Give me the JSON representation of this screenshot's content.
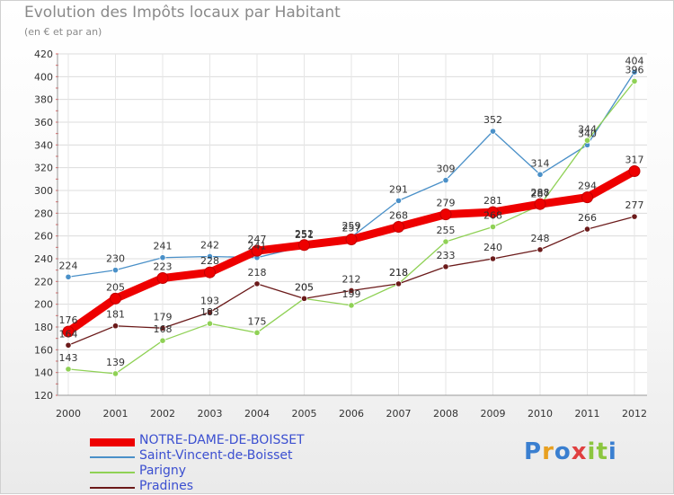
{
  "chart_data": {
    "type": "line",
    "title": "Evolution des Impôts locaux par Habitant",
    "subtitle": "(en € et par an)",
    "x": [
      "2000",
      "2001",
      "2002",
      "2003",
      "2004",
      "2005",
      "2006",
      "2007",
      "2008",
      "2009",
      "2010",
      "2011",
      "2012"
    ],
    "ylim": [
      120,
      420
    ],
    "yticks": [
      120,
      140,
      160,
      180,
      200,
      220,
      240,
      260,
      280,
      300,
      320,
      340,
      360,
      380,
      400,
      420
    ],
    "grid": true,
    "legend_position": "bottom-left",
    "series": [
      {
        "name": "NOTRE-DAME-DE-BOISSET",
        "color": "#ee0000",
        "values": [
          176,
          205,
          223,
          228,
          247,
          252,
          257,
          268,
          279,
          281,
          288,
          294,
          317
        ]
      },
      {
        "name": "Saint-Vincent-de-Boisset",
        "color": "#4a90c8",
        "values": [
          224,
          230,
          241,
          242,
          241,
          251,
          259,
          291,
          309,
          352,
          314,
          340,
          404
        ]
      },
      {
        "name": "Parigny",
        "color": "#8fd155",
        "values": [
          143,
          139,
          168,
          183,
          175,
          205,
          199,
          218,
          255,
          268,
          287,
          344,
          396
        ]
      },
      {
        "name": "Pradines",
        "color": "#6b1a1a",
        "values": [
          164,
          181,
          179,
          193,
          218,
          205,
          212,
          218,
          233,
          240,
          248,
          266,
          277
        ]
      }
    ]
  },
  "branding": {
    "text": "Proxiti",
    "colors": [
      "#3a7fd0",
      "#e8a020",
      "#3a7fd0",
      "#e04040",
      "#8cc63f",
      "#8cc63f",
      "#3a7fd0"
    ]
  }
}
